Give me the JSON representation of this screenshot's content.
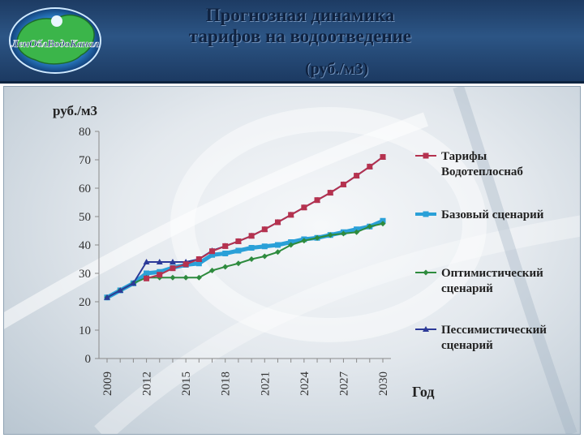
{
  "header": {
    "title_line1": "Прогнозная динамика",
    "title_line2": "тарифов на водоотведение",
    "units": "(руб./м3)",
    "logo_text": "ЛенОблВодоКанал"
  },
  "chart_data": {
    "type": "line",
    "ylabel": "руб./м3",
    "xlabel": "Год",
    "ylim": [
      0,
      80
    ],
    "yticks": [
      0,
      10,
      20,
      30,
      40,
      50,
      60,
      70,
      80
    ],
    "xticks": [
      "2009",
      "2012",
      "2015",
      "2018",
      "2021",
      "2024",
      "2027",
      "2030"
    ],
    "x": [
      2009,
      2010,
      2011,
      2012,
      2013,
      2014,
      2015,
      2016,
      2017,
      2018,
      2019,
      2020,
      2021,
      2022,
      2023,
      2024,
      2025,
      2026,
      2027,
      2028,
      2029,
      2030
    ],
    "legend_position": "right",
    "series": [
      {
        "name": "Тарифы Водотеплоснаб",
        "color": "#b5324f",
        "marker": "square",
        "values": [
          null,
          null,
          null,
          28.2,
          29.5,
          31.8,
          33.2,
          35.0,
          37.8,
          39.6,
          41.3,
          43.2,
          45.5,
          48.0,
          50.6,
          53.2,
          55.8,
          58.4,
          61.3,
          64.4,
          67.6,
          71.0
        ]
      },
      {
        "name": "Базовый сценарий",
        "color": "#2aa0d8",
        "marker": "square",
        "values": [
          21.5,
          24.0,
          26.5,
          30.0,
          30.5,
          32.0,
          33.0,
          33.5,
          36.5,
          37.0,
          38.0,
          39.0,
          39.5,
          40.0,
          41.0,
          42.0,
          42.5,
          43.5,
          44.5,
          45.5,
          46.5,
          48.5
        ]
      },
      {
        "name": "Оптимистический сценарий",
        "color": "#2e8b3e",
        "marker": "diamond",
        "values": [
          21.5,
          24.0,
          26.5,
          28.5,
          28.5,
          28.5,
          28.5,
          28.5,
          31.0,
          32.3,
          33.5,
          35.0,
          36.0,
          37.5,
          40.0,
          41.5,
          42.5,
          43.5,
          44.0,
          44.5,
          46.5,
          47.5
        ]
      },
      {
        "name": "Пессимистический сценарий",
        "color": "#2c3a98",
        "marker": "triangle",
        "values": [
          21.5,
          24.0,
          26.5,
          34.0,
          34.0,
          34.0,
          34.0,
          35.0,
          38.0,
          39.6,
          41.3,
          43.2,
          45.5,
          48.0,
          50.6,
          53.2,
          55.8,
          58.4,
          61.3,
          64.4,
          67.6,
          71.0
        ]
      }
    ]
  }
}
